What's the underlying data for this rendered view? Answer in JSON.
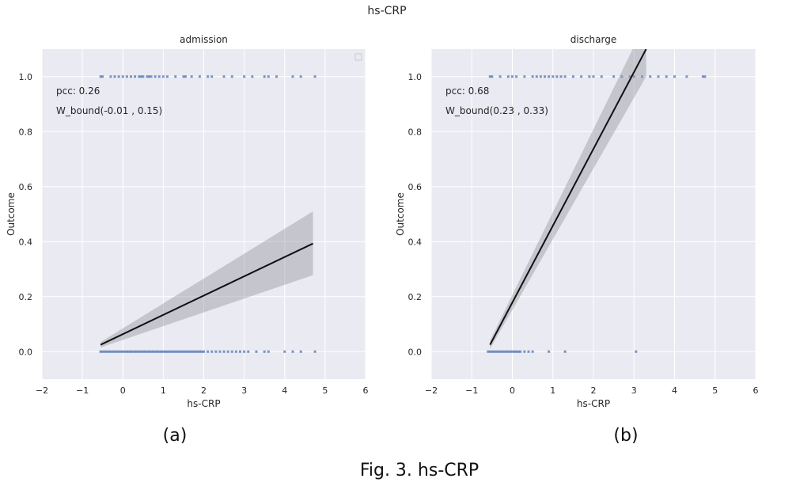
{
  "figure": {
    "suptitle": "hs-CRP",
    "figure_caption": "Fig. 3. hs-CRP"
  },
  "colors": {
    "background": "#eaeaf2",
    "grid": "#ffffff",
    "points": "#4c72b0",
    "line": "#111111",
    "band": "#9a9aa2"
  },
  "chart_data": [
    {
      "type": "scatter",
      "title": "admission",
      "caption": "(a)",
      "xlabel": "hs-CRP",
      "ylabel": "Outcome",
      "xlim": [
        -2,
        6
      ],
      "ylim": [
        -0.1,
        1.1
      ],
      "xticks": [
        -2,
        -1,
        0,
        1,
        2,
        3,
        4,
        5,
        6
      ],
      "yticks": [
        0.0,
        0.2,
        0.4,
        0.6,
        0.8,
        1.0
      ],
      "ytick_labels": [
        "0.0",
        "0.2",
        "0.4",
        "0.6",
        "0.8",
        "1.0"
      ],
      "grid": true,
      "legend": "top-right (empty)",
      "annotations": [
        "pcc: 0.26",
        "W_bound(-0.01    , 0.15)"
      ],
      "points_y1_x": [
        -0.55,
        -0.5,
        -0.3,
        -0.2,
        -0.1,
        0.0,
        0.1,
        0.2,
        0.3,
        0.4,
        0.45,
        0.5,
        0.6,
        0.65,
        0.7,
        0.8,
        0.9,
        1.0,
        1.1,
        1.3,
        1.5,
        1.55,
        1.7,
        1.9,
        2.1,
        2.2,
        2.5,
        2.7,
        3.0,
        3.2,
        3.5,
        3.6,
        3.8,
        4.2,
        4.4,
        4.75
      ],
      "points_y0_x": [
        -0.55,
        -0.5,
        -0.45,
        -0.4,
        -0.35,
        -0.3,
        -0.25,
        -0.2,
        -0.15,
        -0.1,
        -0.05,
        0.0,
        0.05,
        0.1,
        0.15,
        0.2,
        0.25,
        0.3,
        0.35,
        0.4,
        0.45,
        0.5,
        0.55,
        0.6,
        0.65,
        0.7,
        0.75,
        0.8,
        0.85,
        0.9,
        0.95,
        1.0,
        1.05,
        1.1,
        1.15,
        1.2,
        1.25,
        1.3,
        1.35,
        1.4,
        1.45,
        1.5,
        1.55,
        1.6,
        1.65,
        1.7,
        1.75,
        1.8,
        1.85,
        1.9,
        1.95,
        2.0,
        2.1,
        2.2,
        2.3,
        2.4,
        2.5,
        2.6,
        2.7,
        2.8,
        2.9,
        3.0,
        3.1,
        3.3,
        3.5,
        3.6,
        4.0,
        4.2,
        4.4,
        4.75
      ],
      "regression": {
        "x": [
          -0.55,
          4.7
        ],
        "y": [
          0.025,
          0.393
        ],
        "ci_low": [
          0.015,
          0.278
        ],
        "ci_high": [
          0.035,
          0.51
        ]
      }
    },
    {
      "type": "scatter",
      "title": "discharge",
      "caption": "(b)",
      "xlabel": "hs-CRP",
      "ylabel": "Outcome",
      "xlim": [
        -2,
        6
      ],
      "ylim": [
        -0.1,
        1.1
      ],
      "xticks": [
        -2,
        -1,
        0,
        1,
        2,
        3,
        4,
        5,
        6
      ],
      "yticks": [
        0.0,
        0.2,
        0.4,
        0.6,
        0.8,
        1.0
      ],
      "ytick_labels": [
        "0.0",
        "0.2",
        "0.4",
        "0.6",
        "0.8",
        "1.0"
      ],
      "grid": true,
      "annotations": [
        "pcc: 0.68",
        "W_bound(0.23      , 0.33)"
      ],
      "points_y1_x": [
        -0.55,
        -0.5,
        -0.3,
        -0.1,
        0.0,
        0.1,
        0.3,
        0.5,
        0.6,
        0.7,
        0.8,
        0.9,
        1.0,
        1.1,
        1.2,
        1.3,
        1.5,
        1.7,
        1.9,
        2.0,
        2.2,
        2.5,
        2.7,
        2.9,
        3.0,
        3.2,
        3.4,
        3.6,
        3.8,
        4.0,
        4.3,
        4.7,
        4.75
      ],
      "points_y0_x": [
        -0.6,
        -0.55,
        -0.5,
        -0.45,
        -0.4,
        -0.35,
        -0.3,
        -0.25,
        -0.2,
        -0.15,
        -0.1,
        -0.05,
        0.0,
        0.05,
        0.1,
        0.15,
        0.2,
        0.3,
        0.4,
        0.5,
        0.9,
        1.3,
        3.05
      ],
      "regression": {
        "x": [
          -0.55,
          3.3
        ],
        "y": [
          0.025,
          1.1
        ],
        "ci_low": [
          0.01,
          1.0
        ],
        "ci_high": [
          0.04,
          1.2
        ]
      }
    }
  ]
}
